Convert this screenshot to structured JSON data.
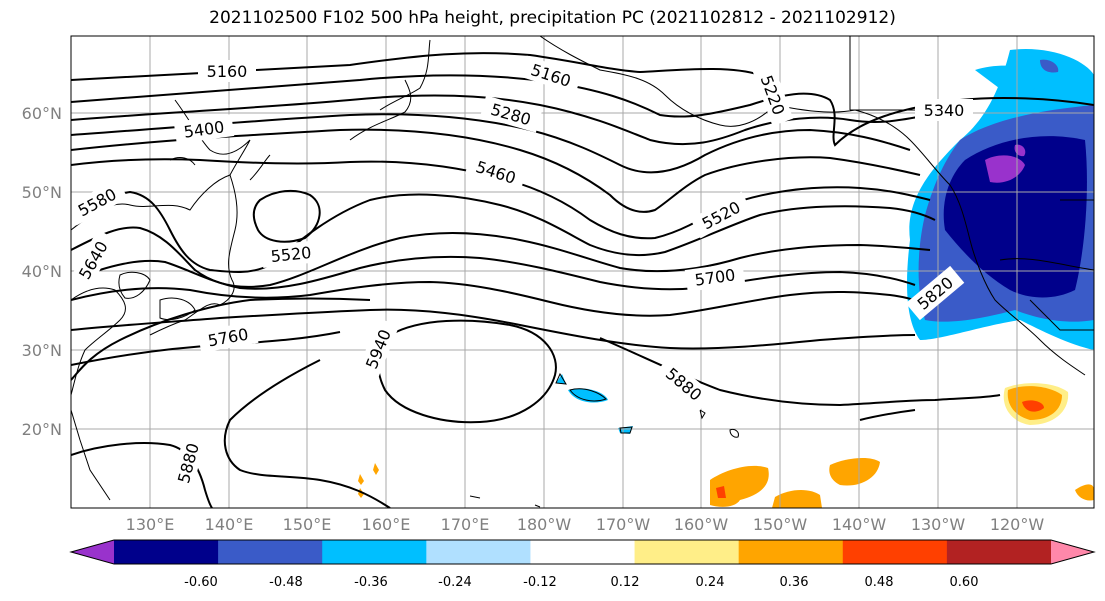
{
  "title": "2021102500 F102 500 hPa height, precipitation PC (2021102812 - 2021102912)",
  "map": {
    "lat_labels": [
      "60°N",
      "50°N",
      "40°N",
      "30°N",
      "20°N"
    ],
    "lon_labels": [
      "130°E",
      "140°E",
      "150°E",
      "160°E",
      "170°E",
      "180°W",
      "170°W",
      "160°W",
      "150°W",
      "140°W",
      "130°W",
      "120°W"
    ]
  },
  "contour_labels": [
    "5160",
    "5160",
    "5400",
    "5280",
    "5220",
    "5340",
    "5460",
    "5580",
    "5520",
    "5520",
    "5640",
    "5700",
    "5820",
    "5760",
    "5940",
    "5880",
    "5880"
  ],
  "colorbar": {
    "ticks": [
      "-0.60",
      "-0.48",
      "-0.36",
      "-0.24",
      "-0.12",
      "0.12",
      "0.24",
      "0.36",
      "0.48",
      "0.60"
    ],
    "colors": [
      "#9932cc",
      "#00008b",
      "#3a5bc8",
      "#00bfff",
      "#b0e0ff",
      "#ffffff",
      "#ffee88",
      "#ffa500",
      "#ff4000",
      "#b22222",
      "#ff88aa"
    ]
  }
}
